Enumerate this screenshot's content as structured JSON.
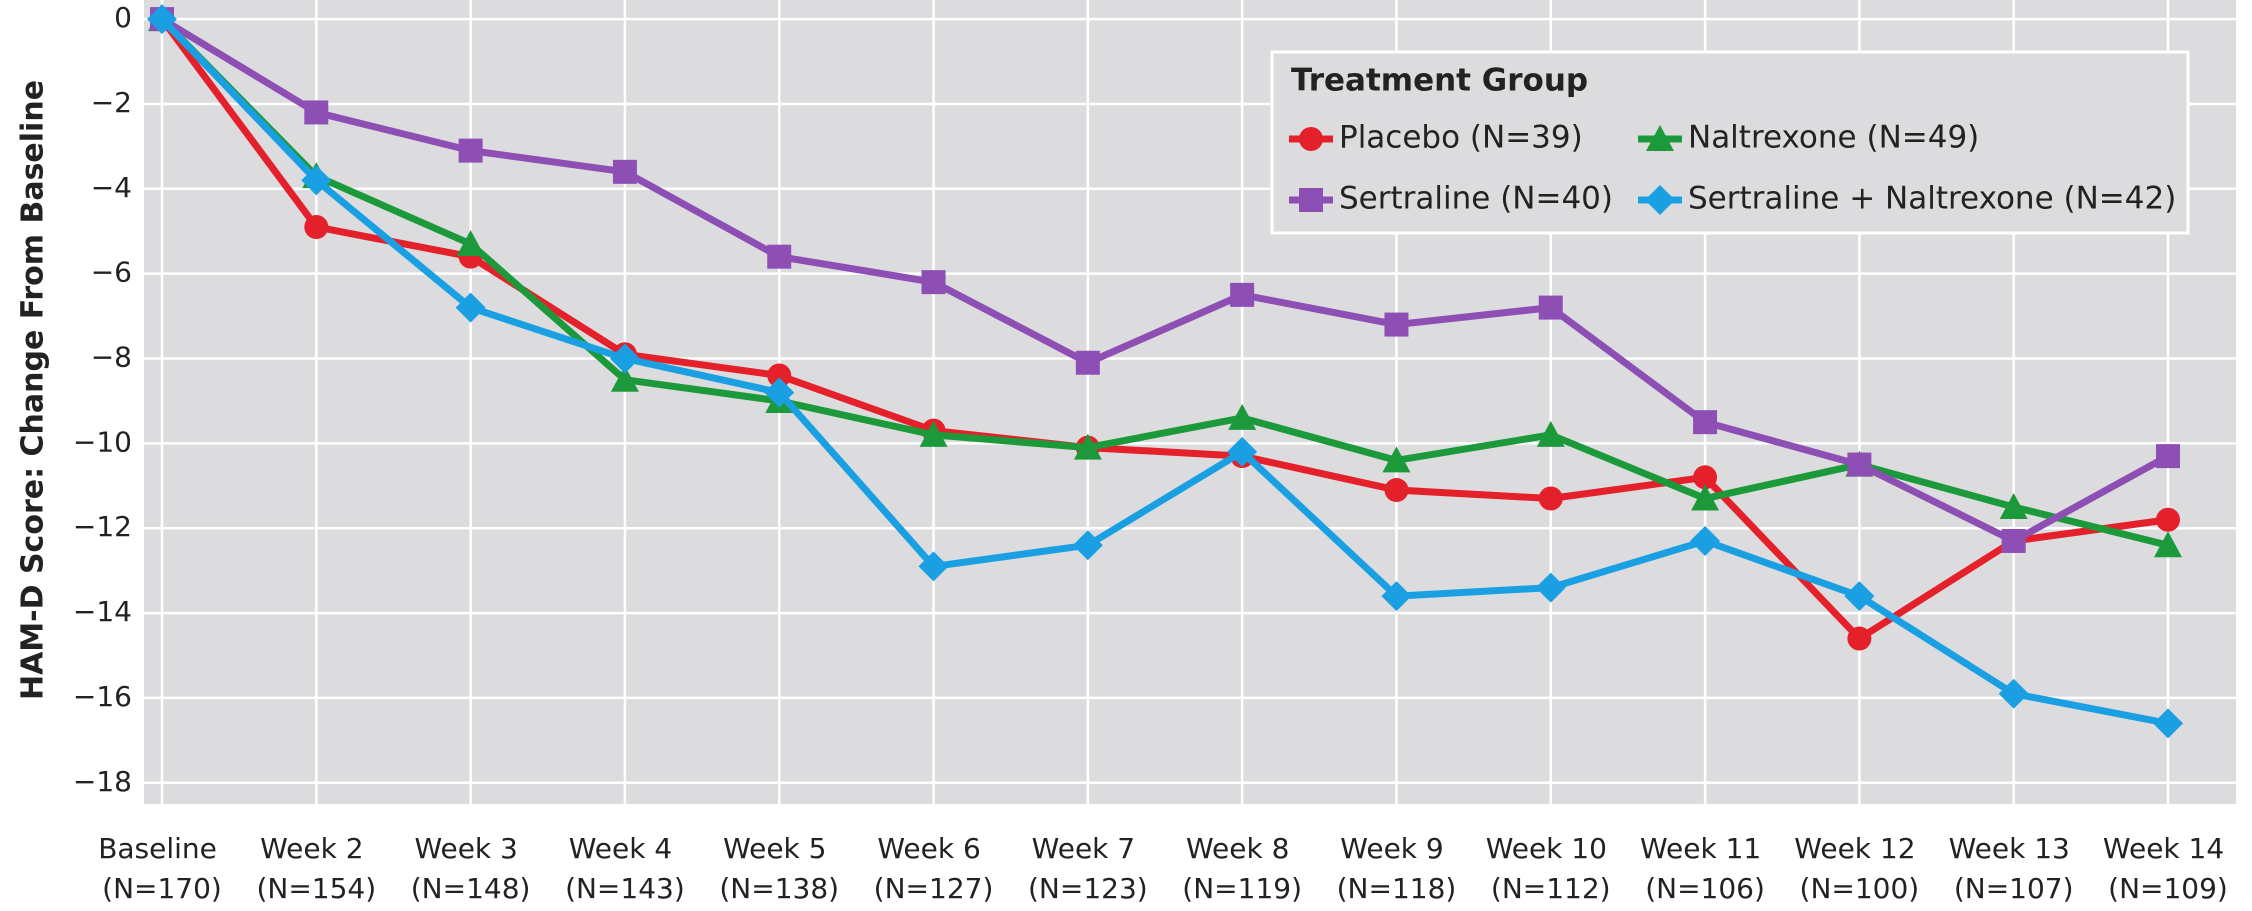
{
  "chart_data": {
    "type": "line",
    "y_label": "HAM-D Score: Change From Baseline",
    "categories": [
      "Baseline (N=170)",
      "Week 2 (N=154)",
      "Week 3 (N=148)",
      "Week 4 (N=143)",
      "Week 5 (N=138)",
      "Week 6 (N=127)",
      "Week 7 (N=123)",
      "Week 8 (N=119)",
      "Week 9 (N=118)",
      "Week 10 (N=112)",
      "Week 11 (N=106)",
      "Week 12 (N=100)",
      "Week 13 (N=107)",
      "Week 14 (N=109)"
    ],
    "legend_title": "Treatment Group",
    "legend": "upper right",
    "grid": true,
    "ylim": [
      -18.5,
      0.45
    ],
    "yticks": [
      {
        "value": 0,
        "label": "0"
      },
      {
        "value": -2,
        "label": "−2"
      },
      {
        "value": -4,
        "label": "−4"
      },
      {
        "value": -6,
        "label": "−6"
      },
      {
        "value": -8,
        "label": "−8"
      },
      {
        "value": -10,
        "label": "−10"
      },
      {
        "value": -12,
        "label": "−12"
      },
      {
        "value": -14,
        "label": "−14"
      },
      {
        "value": -16,
        "label": "−16"
      },
      {
        "value": -18,
        "label": "−18"
      }
    ],
    "series": [
      {
        "name": "Placebo (N=39)",
        "color": "#e4202a",
        "marker": "circle",
        "values": [
          0,
          -4.9,
          -5.6,
          -7.9,
          -8.4,
          -9.7,
          -10.1,
          -10.3,
          -11.1,
          -11.3,
          -10.8,
          -14.6,
          -12.3,
          -11.8
        ]
      },
      {
        "name": "Naltrexone (N=49)",
        "color": "#1c9a3b",
        "marker": "triangle",
        "values": [
          0,
          -3.7,
          -5.3,
          -8.5,
          -9.0,
          -9.8,
          -10.1,
          -9.4,
          -10.4,
          -9.8,
          -11.3,
          -10.5,
          -11.5,
          -12.4
        ]
      },
      {
        "name": "Sertraline (N=40)",
        "color": "#8e4fb5",
        "marker": "square",
        "values": [
          0,
          -2.2,
          -3.1,
          -3.6,
          -5.6,
          -6.2,
          -8.1,
          -6.5,
          -7.2,
          -6.8,
          -9.5,
          -10.5,
          -12.3,
          -10.3
        ]
      },
      {
        "name": "Sertraline + Naltrexone (N=42)",
        "color": "#1aa0e2",
        "marker": "diamond",
        "values": [
          0,
          -3.8,
          -6.8,
          -8.0,
          -8.8,
          -12.9,
          -12.4,
          -10.2,
          -13.6,
          -13.4,
          -12.3,
          -13.6,
          -15.9,
          -16.6
        ]
      }
    ]
  }
}
